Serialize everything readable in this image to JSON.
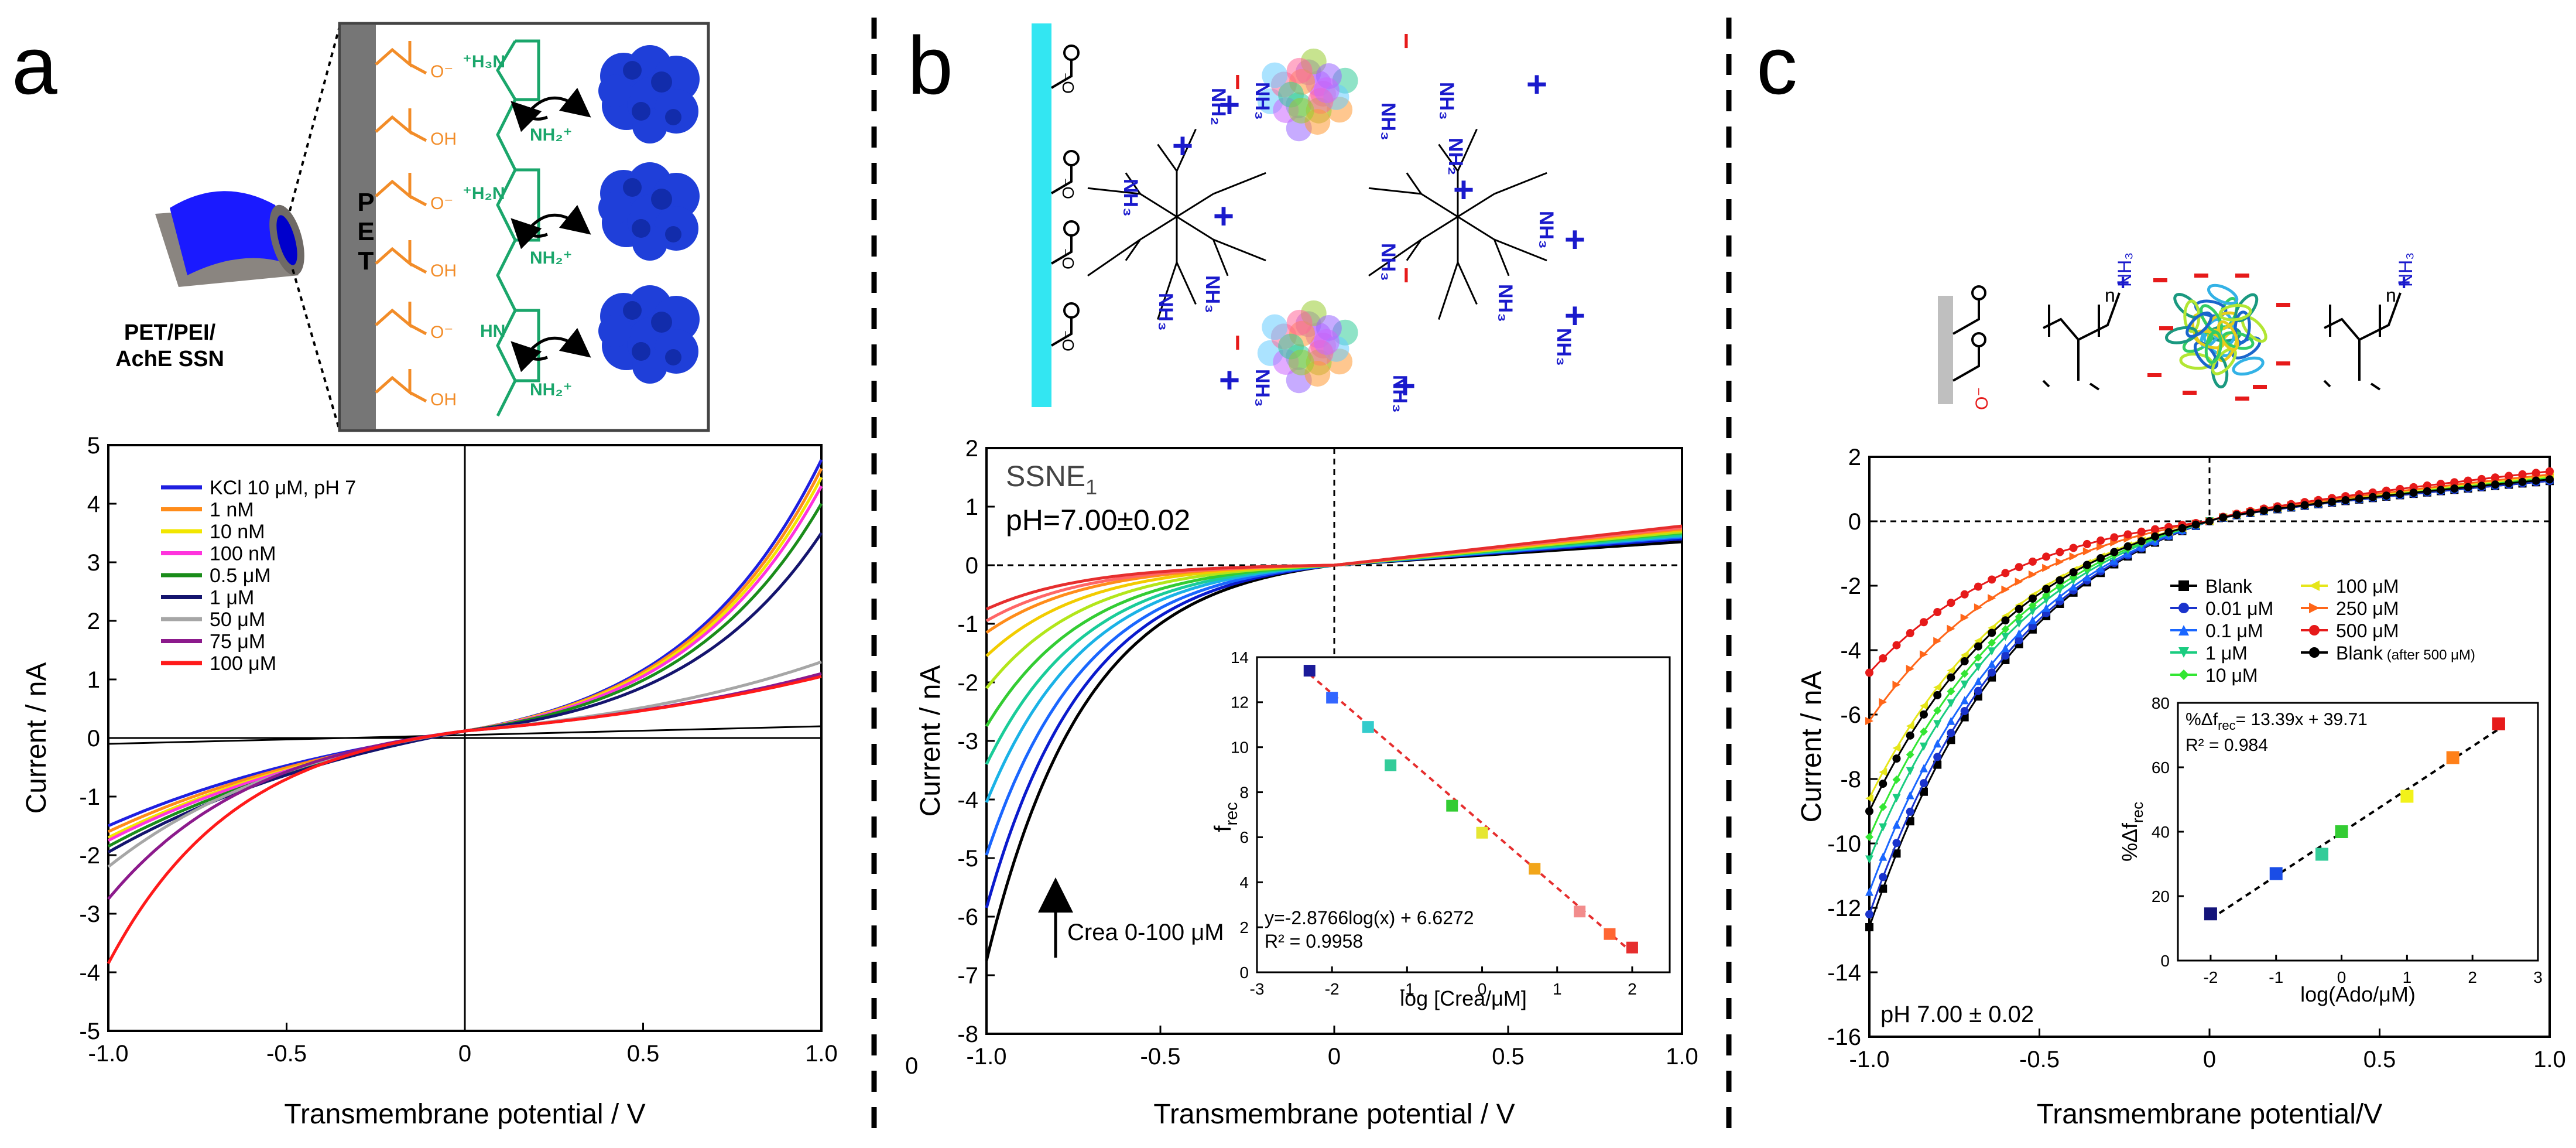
{
  "panels": {
    "a": {
      "label": "a"
    },
    "b": {
      "label": "b"
    },
    "c": {
      "label": "c"
    }
  },
  "schematics": {
    "a": {
      "pet_letters": [
        "P",
        "E",
        "T"
      ],
      "caption_lines": [
        "PET/PEI/",
        "AchE SSN"
      ],
      "carboxyl_labels": [
        "O⁻",
        "OH",
        "O⁻",
        "OH",
        "O⁻",
        "OH"
      ],
      "amine_labels": [
        "⁺H₃N",
        "NH₂⁺",
        "⁺H₂N",
        "NH₂⁺",
        "HN",
        "NH₂⁺"
      ]
    },
    "b": {
      "charge_plus": "+",
      "charge_minus": "−",
      "carboxyl_minus": "O⁻",
      "nh3_label": "NH₃",
      "nh2_label": "NH₂"
    },
    "c": {
      "carboxyl_minus": "O⁻",
      "n_label": "n",
      "nh3_label": "NH₃",
      "plus": "+"
    }
  },
  "chart_data": [
    {
      "id": "a",
      "type": "line",
      "title": "",
      "xlabel": "Transmembrane potential / V",
      "ylabel": "Current / nA",
      "xlim": [
        -1.0,
        1.0
      ],
      "ylim": [
        -5,
        5
      ],
      "xticks": [
        -1.0,
        -0.5,
        0,
        0.5,
        1.0
      ],
      "xtick_labels": [
        "-1.0",
        "-0.5",
        "0",
        "0.5",
        "1.0"
      ],
      "yticks": [
        -5,
        -4,
        -3,
        -2,
        -1,
        0,
        1,
        2,
        3,
        4,
        5
      ],
      "ytick_labels": [
        "-5",
        "-4",
        "-3",
        "-2",
        "-1",
        "0",
        "1",
        "2",
        "3",
        "4",
        "5"
      ],
      "legend_position": "top-left",
      "series": [
        {
          "name": "KCl 10 μM, pH 7",
          "color": "#1f1fe0",
          "neg": -1.5,
          "pos": 4.75,
          "kneg": 1.2,
          "kpos": 2.4
        },
        {
          "name": "1 nM",
          "color": "#ff8c1a",
          "neg": -1.6,
          "pos": 4.6,
          "kneg": 1.2,
          "kpos": 2.4
        },
        {
          "name": "10 nM",
          "color": "#f2e600",
          "neg": -1.7,
          "pos": 4.45,
          "kneg": 1.2,
          "kpos": 2.4
        },
        {
          "name": "100 nM",
          "color": "#ff33dd",
          "neg": -1.75,
          "pos": 4.3,
          "kneg": 1.2,
          "kpos": 2.4
        },
        {
          "name": "0.5 μM",
          "color": "#1a8c1a",
          "neg": -1.85,
          "pos": 4.0,
          "kneg": 1.2,
          "kpos": 2.4
        },
        {
          "name": "1 μM",
          "color": "#14146e",
          "neg": -1.95,
          "pos": 3.5,
          "kneg": 1.2,
          "kpos": 2.4
        },
        {
          "name": "50 μM",
          "color": "#a6a6a6",
          "neg": -2.2,
          "pos": 1.3,
          "kneg": 1.8,
          "kpos": 1.2
        },
        {
          "name": "75 μM",
          "color": "#8c1a8c",
          "neg": -2.75,
          "pos": 1.1,
          "kneg": 2.4,
          "kpos": 1.0
        },
        {
          "name": "100 μM",
          "color": "#ff1a1a",
          "neg": -3.85,
          "pos": 1.05,
          "kneg": 2.8,
          "kpos": 0.9
        }
      ],
      "reference_line": {
        "x": [
          -1.0,
          1.0
        ],
        "y": [
          -0.1,
          0.2
        ],
        "color": "#000000"
      }
    },
    {
      "id": "b",
      "type": "line",
      "title": "",
      "annotation_name": "SSNE",
      "annotation_sub": "1",
      "annotation_ph": "pH=7.00±0.02",
      "arrow_label": "Crea 0-100 μM",
      "xlabel": "Transmembrane potential / V",
      "ylabel": "Current / nA",
      "xlim": [
        -1.0,
        1.0
      ],
      "ylim": [
        -8,
        2
      ],
      "xticks": [
        -1.0,
        -0.5,
        0,
        0.5,
        1.0
      ],
      "xtick_labels": [
        "-1.0",
        "-0.5",
        "0",
        "0.5",
        "1.0"
      ],
      "yticks": [
        -8,
        -7,
        -6,
        -5,
        -4,
        -3,
        -2,
        -1,
        0,
        1,
        2
      ],
      "ytick_labels": [
        "-8",
        "-7",
        "-6",
        "-5",
        "-4",
        "-3",
        "-2",
        "-1",
        "0",
        "1",
        "2"
      ],
      "outside_zero_label": "0",
      "series": [
        {
          "color": "#000000",
          "neg": -6.75,
          "pos": 0.4
        },
        {
          "color": "#0a1acc",
          "neg": -5.85,
          "pos": 0.45
        },
        {
          "color": "#1a66ff",
          "neg": -4.95,
          "pos": 0.48
        },
        {
          "color": "#1ab2e6",
          "neg": -4.05,
          "pos": 0.5
        },
        {
          "color": "#1acc99",
          "neg": -3.4,
          "pos": 0.52
        },
        {
          "color": "#33cc33",
          "neg": -2.75,
          "pos": 0.55
        },
        {
          "color": "#b2e61a",
          "neg": -2.1,
          "pos": 0.57
        },
        {
          "color": "#f2cc00",
          "neg": -1.55,
          "pos": 0.6
        },
        {
          "color": "#ff8c1a",
          "neg": -1.15,
          "pos": 0.62
        },
        {
          "color": "#ff6666",
          "neg": -0.95,
          "pos": 0.64
        },
        {
          "color": "#e62e2e",
          "neg": -0.75,
          "pos": 0.67
        }
      ],
      "inset": {
        "type": "scatter",
        "xlabel": "log [Crea/μM]",
        "ylabel": "f",
        "ylabel_sub": "rec",
        "xlim": [
          -3,
          2.5
        ],
        "ylim": [
          0,
          14
        ],
        "xticks": [
          -3,
          -2,
          -1,
          0,
          1,
          2
        ],
        "xtick_labels": [
          "-3",
          "-2",
          "-1",
          "0",
          "1",
          "2"
        ],
        "yticks": [
          0,
          2,
          4,
          6,
          8,
          10,
          12,
          14
        ],
        "ytick_labels": [
          "0",
          "2",
          "4",
          "6",
          "8",
          "10",
          "12",
          "14"
        ],
        "points": [
          {
            "x": -2.3,
            "y": 13.4,
            "color": "#1a1a99"
          },
          {
            "x": -2.0,
            "y": 12.2,
            "color": "#3366ff"
          },
          {
            "x": -1.52,
            "y": 10.9,
            "color": "#33cccc"
          },
          {
            "x": -1.22,
            "y": 9.2,
            "color": "#33cc99"
          },
          {
            "x": -0.4,
            "y": 7.4,
            "color": "#33cc33"
          },
          {
            "x": 0.0,
            "y": 6.2,
            "color": "#e6e633"
          },
          {
            "x": 0.7,
            "y": 4.6,
            "color": "#f2a61a"
          },
          {
            "x": 1.3,
            "y": 2.7,
            "color": "#f28c8c"
          },
          {
            "x": 1.7,
            "y": 1.7,
            "color": "#ff6633"
          },
          {
            "x": 2.0,
            "y": 1.1,
            "color": "#e62e2e"
          }
        ],
        "fit": {
          "slope": -2.8766,
          "intercept": 6.6272,
          "x_range": [
            -2.3,
            2.0
          ]
        },
        "fit_text": "y=-2.8766log(x) + 6.6272",
        "r2_text": "R² = 0.9958"
      }
    },
    {
      "id": "c",
      "type": "line",
      "title": "",
      "annotation_ph": "pH 7.00 ± 0.02",
      "xlabel": "Transmembrane potential/V",
      "ylabel": "Current / nA",
      "xlim": [
        -1.0,
        1.0
      ],
      "ylim": [
        -16,
        2
      ],
      "xticks": [
        -1.0,
        -0.5,
        0,
        0.5,
        1.0
      ],
      "xtick_labels": [
        "-1.0",
        "-0.5",
        "0",
        "0.5",
        "1.0"
      ],
      "yticks": [
        -16,
        -14,
        -12,
        -10,
        -8,
        -6,
        -4,
        -2,
        0,
        2
      ],
      "ytick_labels": [
        "-16",
        "-14",
        "-12",
        "-10",
        "-8",
        "-6",
        "-4",
        "-2",
        "0",
        "2"
      ],
      "legend_position": "middle-right",
      "series": [
        {
          "name": "Blank",
          "color": "#000000",
          "marker": "square",
          "neg": -12.6,
          "pos": 1.25
        },
        {
          "name": "0.01 μM",
          "color": "#1a33cc",
          "marker": "circle",
          "neg": -12.2,
          "pos": 1.25
        },
        {
          "name": "0.1 μM",
          "color": "#1a66ff",
          "marker": "triangle",
          "neg": -11.5,
          "pos": 1.3
        },
        {
          "name": "1 μM",
          "color": "#1acc80",
          "marker": "triangle-down",
          "neg": -10.5,
          "pos": 1.3
        },
        {
          "name": "10 μM",
          "color": "#33e633",
          "marker": "diamond",
          "neg": -9.8,
          "pos": 1.35
        },
        {
          "name": "100 μM",
          "color": "#e6e61a",
          "marker": "triangle-left",
          "neg": -8.6,
          "pos": 1.4
        },
        {
          "name": "250 μM",
          "color": "#ff6619",
          "marker": "triangle-right",
          "neg": -6.2,
          "pos": 1.45
        },
        {
          "name": "500 μM",
          "color": "#e61a1a",
          "marker": "circle",
          "neg": -4.7,
          "pos": 1.55
        },
        {
          "name": "Blank",
          "name_suffix": "(after 500 μM)",
          "color": "#000000",
          "marker": "circle",
          "neg": -9.0,
          "pos": 1.3
        }
      ],
      "inset": {
        "type": "scatter",
        "xlabel": "log(Ado/μM)",
        "ylabel": "%Δf",
        "ylabel_sub": "rec",
        "xlim": [
          -2.5,
          3
        ],
        "ylim": [
          0,
          80
        ],
        "xticks": [
          -2,
          -1,
          0,
          1,
          2,
          3
        ],
        "xtick_labels": [
          "-2",
          "-1",
          "0",
          "1",
          "2",
          "3"
        ],
        "yticks": [
          0,
          20,
          40,
          60,
          80
        ],
        "ytick_labels": [
          "0",
          "20",
          "40",
          "60",
          "80"
        ],
        "points": [
          {
            "x": -2.0,
            "y": 14.5,
            "color": "#14147a"
          },
          {
            "x": -1.0,
            "y": 27.0,
            "color": "#1a4de6"
          },
          {
            "x": -0.3,
            "y": 33.0,
            "color": "#33cc99"
          },
          {
            "x": 0.0,
            "y": 40.0,
            "color": "#33cc33"
          },
          {
            "x": 1.0,
            "y": 51.0,
            "color": "#f2f21a"
          },
          {
            "x": 1.7,
            "y": 63.0,
            "color": "#ff8019"
          },
          {
            "x": 2.4,
            "y": 73.5,
            "color": "#e61a1a"
          }
        ],
        "fit": {
          "slope": 13.39,
          "intercept": 39.71,
          "x_range": [
            -2.0,
            2.4
          ]
        },
        "fit_text": "%Δf",
        "fit_text_sub": "rec",
        "fit_text_rest": "= 13.39x + 39.71",
        "r2_text": "R² = 0.984"
      }
    }
  ]
}
